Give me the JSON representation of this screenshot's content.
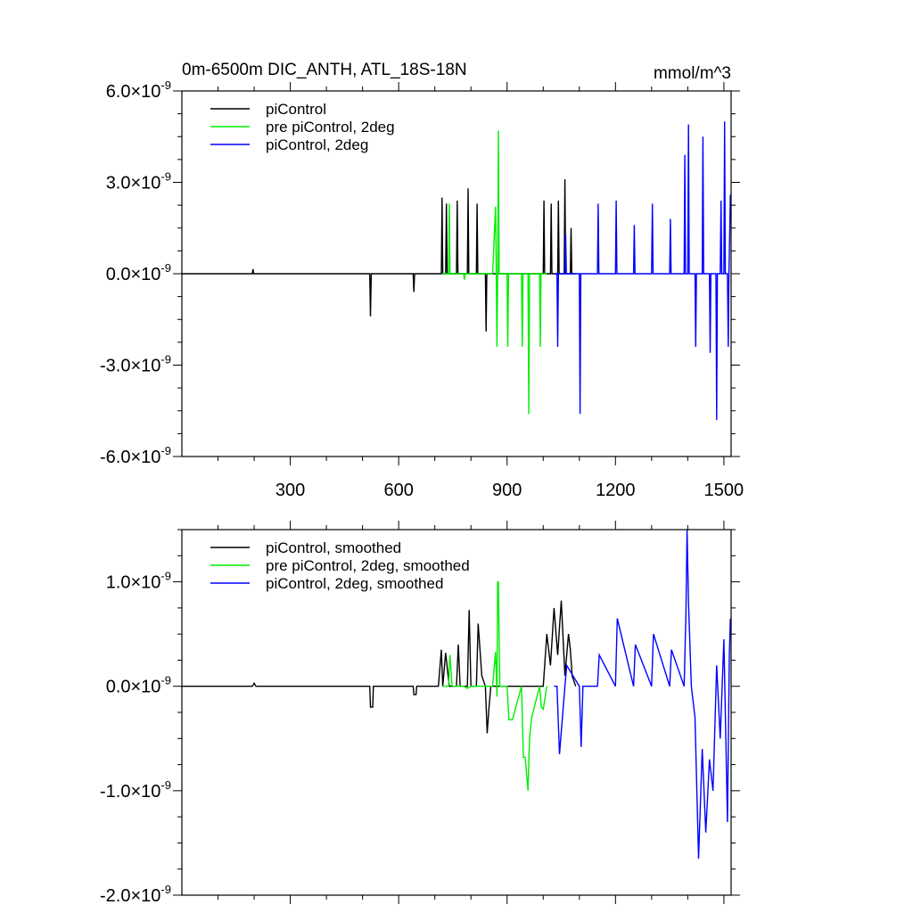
{
  "chart_data": [
    {
      "type": "line",
      "title": "0m-6500m DIC_ANTH, ATL_18S-18N",
      "units": "mmol/m^3",
      "xlim": [
        0,
        1520
      ],
      "ylim": [
        -6e-09,
        6e-09
      ],
      "x_ticks": [
        300,
        600,
        900,
        1200,
        1500
      ],
      "x_tick_labels": [
        "300",
        "600",
        "900",
        "1200",
        "1500"
      ],
      "y_ticks": [
        -6e-09,
        -3e-09,
        0.0,
        3e-09,
        6e-09
      ],
      "y_tick_labels": [
        {
          "mantissa": "-6.0",
          "times": "×",
          "base": "10",
          "exp": "-9"
        },
        {
          "mantissa": "-3.0",
          "times": "×",
          "base": "10",
          "exp": "-9"
        },
        {
          "mantissa": "0.0",
          "times": "×",
          "base": "10",
          "exp": "-9"
        },
        {
          "mantissa": "3.0",
          "times": "×",
          "base": "10",
          "exp": "-9"
        },
        {
          "mantissa": "6.0",
          "times": "×",
          "base": "10",
          "exp": "-9"
        }
      ],
      "legend_position": "top-left",
      "series": [
        {
          "name": "piControl",
          "color": "#000000",
          "x": [
            0,
            195,
            197,
            199,
            520,
            522,
            524,
            640,
            642,
            644,
            700,
            718,
            720,
            722,
            730,
            732,
            734,
            760,
            762,
            764,
            790,
            792,
            794,
            815,
            817,
            819,
            840,
            842,
            844,
            1000,
            1002,
            1004,
            1020,
            1022,
            1024,
            1040,
            1042,
            1044,
            1058,
            1060,
            1062,
            1075,
            1077,
            1079,
            1090
          ],
          "values": [
            0,
            0,
            1.5e-10,
            0,
            0,
            -1.4e-09,
            0,
            0,
            -6e-10,
            0,
            0,
            0,
            2.5e-09,
            0,
            0,
            2.3e-09,
            0,
            0,
            2.4e-09,
            0,
            0,
            2.8e-09,
            0,
            0,
            2.3e-09,
            0,
            0,
            -1.9e-09,
            0,
            0,
            2.4e-09,
            0,
            0,
            2.3e-09,
            0,
            0,
            2.4e-09,
            0,
            0,
            3.1e-09,
            0,
            0,
            1.5e-09,
            0,
            0
          ]
        },
        {
          "name": "pre piControl, 2deg",
          "color": "#00ee00",
          "x": [
            720,
            738,
            740,
            742,
            780,
            782,
            784,
            860,
            868,
            870,
            872,
            874,
            876,
            878,
            900,
            902,
            904,
            940,
            942,
            944,
            958,
            960,
            962,
            990,
            992,
            994,
            1010
          ],
          "values": [
            0,
            0,
            2.3e-09,
            0,
            0,
            -2e-10,
            0,
            0,
            2.2e-09,
            0,
            -2.4e-09,
            0,
            4.7e-09,
            0,
            0,
            -2.4e-09,
            0,
            0,
            -2.4e-09,
            0,
            0,
            -4.6e-09,
            0,
            0,
            -2.4e-09,
            0,
            0
          ]
        },
        {
          "name": "piControl, 2deg",
          "color": "#0000ff",
          "x": [
            1030,
            1038,
            1040,
            1042,
            1060,
            1062,
            1064,
            1100,
            1102,
            1104,
            1150,
            1152,
            1154,
            1200,
            1202,
            1204,
            1250,
            1252,
            1254,
            1300,
            1302,
            1304,
            1350,
            1352,
            1354,
            1390,
            1392,
            1394,
            1400,
            1402,
            1404,
            1420,
            1422,
            1424,
            1440,
            1442,
            1444,
            1460,
            1462,
            1464,
            1478,
            1480,
            1482,
            1490,
            1492,
            1494,
            1500,
            1502,
            1504,
            1510,
            1512,
            1514,
            1518
          ],
          "values": [
            0,
            0,
            -2.4e-09,
            0,
            0,
            1.3e-09,
            0,
            0,
            -4.6e-09,
            0,
            0,
            2.3e-09,
            0,
            0,
            2.4e-09,
            0,
            0,
            1.6e-09,
            0,
            0,
            2.3e-09,
            0,
            0,
            1.8e-09,
            0,
            0,
            3.9e-09,
            0,
            0,
            4.9e-09,
            0,
            0,
            -2.4e-09,
            0,
            0,
            4.5e-09,
            0,
            0,
            -2.6e-09,
            0,
            0,
            -4.8e-09,
            0,
            0,
            2.4e-09,
            0,
            0,
            5e-09,
            0,
            0,
            -2.4e-09,
            0,
            2.6e-09
          ]
        }
      ]
    },
    {
      "type": "line",
      "xlim": [
        0,
        1520
      ],
      "ylim": [
        -2e-09,
        1.5e-09
      ],
      "x_ticks": [
        300,
        600,
        900,
        1200,
        1500
      ],
      "y_ticks": [
        -2e-09,
        -1e-09,
        0.0,
        1e-09
      ],
      "y_tick_labels": [
        {
          "mantissa": "-2.0",
          "times": "×",
          "base": "10",
          "exp": "-9"
        },
        {
          "mantissa": "-1.0",
          "times": "×",
          "base": "10",
          "exp": "-9"
        },
        {
          "mantissa": "0.0",
          "times": "×",
          "base": "10",
          "exp": "-9"
        },
        {
          "mantissa": "1.0",
          "times": "×",
          "base": "10",
          "exp": "-9"
        }
      ],
      "legend_position": "top-left",
      "series": [
        {
          "name": "piControl, smoothed",
          "color": "#000000",
          "x": [
            0,
            195,
            200,
            205,
            520,
            522,
            528,
            530,
            640,
            642,
            648,
            650,
            710,
            718,
            722,
            730,
            740,
            760,
            765,
            770,
            790,
            795,
            800,
            815,
            820,
            830,
            840,
            845,
            850,
            855,
            1000,
            1010,
            1020,
            1030,
            1040,
            1050,
            1060,
            1070,
            1075,
            1080,
            1090
          ],
          "values": [
            0,
            0,
            3e-11,
            0,
            0,
            -2e-10,
            -2e-10,
            0,
            0,
            -8e-11,
            -8e-11,
            0,
            0,
            3.5e-10,
            0,
            3.2e-10,
            0,
            0,
            4e-10,
            0,
            0,
            7.3e-10,
            0,
            0,
            6e-10,
            1e-10,
            0,
            -4.5e-10,
            -2e-10,
            0,
            0,
            5e-10,
            2e-10,
            7.5e-10,
            3e-10,
            8.2e-10,
            1e-10,
            5e-10,
            3.5e-10,
            1e-10,
            0
          ]
        },
        {
          "name": "pre piControl, 2deg, smoothed",
          "color": "#00ee00",
          "x": [
            720,
            738,
            742,
            748,
            780,
            790,
            800,
            860,
            868,
            872,
            874,
            876,
            880,
            900,
            905,
            915,
            940,
            945,
            950,
            958,
            962,
            968,
            990,
            995,
            1000,
            1010
          ],
          "values": [
            0,
            0,
            3e-10,
            0,
            0,
            -2e-11,
            0,
            0,
            3.3e-10,
            -1e-10,
            1e-09,
            1e-09,
            0,
            0,
            -3.2e-10,
            -3.2e-10,
            0,
            -6.8e-10,
            -6.8e-10,
            -1e-09,
            -5e-10,
            -3e-10,
            0,
            -2e-10,
            -2.2e-10,
            0
          ]
        },
        {
          "name": "piControl, 2deg, smoothed",
          "color": "#0000ff",
          "x": [
            1030,
            1038,
            1045,
            1060,
            1065,
            1100,
            1105,
            1110,
            1150,
            1155,
            1200,
            1205,
            1250,
            1255,
            1300,
            1305,
            1350,
            1355,
            1390,
            1395,
            1398,
            1402,
            1410,
            1420,
            1430,
            1440,
            1450,
            1460,
            1470,
            1480,
            1490,
            1500,
            1510,
            1515,
            1518
          ],
          "values": [
            0,
            0,
            -6.5e-10,
            0,
            2e-10,
            0,
            -5.8e-10,
            0,
            0,
            3e-10,
            0,
            6.5e-10,
            0,
            4e-10,
            0,
            5e-10,
            0,
            3.5e-10,
            0,
            6.8e-10,
            1.5e-09,
            8e-10,
            0,
            -3e-10,
            -1.65e-09,
            -6e-10,
            -1.4e-09,
            -7e-10,
            -1e-09,
            2e-10,
            -5e-10,
            4.5e-10,
            -1.3e-09,
            3e-10,
            6.5e-10
          ]
        }
      ]
    }
  ]
}
